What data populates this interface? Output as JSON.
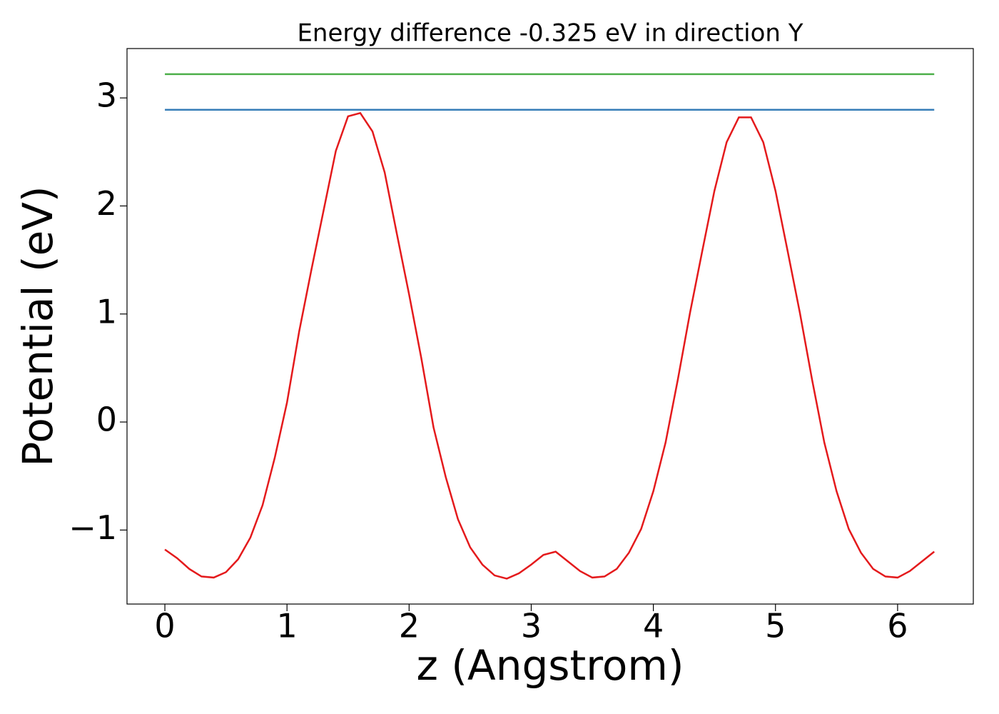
{
  "chart_data": {
    "type": "line",
    "title": "Energy difference -0.325 eV in direction Y",
    "x_label": "z (Angstrom)",
    "y_label": "Potential (eV)",
    "xlim": [
      -0.31,
      6.62
    ],
    "ylim": [
      -1.685,
      3.457
    ],
    "xticks": [
      0,
      1,
      2,
      3,
      4,
      5,
      6
    ],
    "yticks": [
      {
        "value": -1,
        "label": "−1"
      },
      0,
      1,
      2,
      3
    ],
    "grid": false,
    "series": [
      {
        "color": "#e41a1c",
        "x": [
          0,
          0.1,
          0.2,
          0.3,
          0.4,
          0.5,
          0.6,
          0.7,
          0.8,
          0.9,
          1.0,
          1.1,
          1.2,
          1.3,
          1.4,
          1.5,
          1.6,
          1.7,
          1.8,
          1.9,
          2.0,
          2.1,
          2.2,
          2.3,
          2.4,
          2.5,
          2.6,
          2.7,
          2.8,
          2.9,
          3.0,
          3.1,
          3.2,
          3.3,
          3.4,
          3.5,
          3.6,
          3.7,
          3.8,
          3.9,
          4.0,
          4.1,
          4.2,
          4.3,
          4.4,
          4.5,
          4.6,
          4.7,
          4.8,
          4.9,
          5.0,
          5.1,
          5.2,
          5.3,
          5.4,
          5.5,
          5.6,
          5.7,
          5.8,
          5.9,
          6.0,
          6.1,
          6.2,
          6.3
        ],
        "values": [
          -1.18,
          -1.26,
          -1.36,
          -1.43,
          -1.44,
          -1.39,
          -1.27,
          -1.07,
          -0.77,
          -0.33,
          0.18,
          0.84,
          1.41,
          1.96,
          2.51,
          2.83,
          2.86,
          2.69,
          2.31,
          1.74,
          1.18,
          0.59,
          -0.05,
          -0.51,
          -0.9,
          -1.16,
          -1.32,
          -1.42,
          -1.45,
          -1.4,
          -1.32,
          -1.23,
          -1.2,
          -1.29,
          -1.38,
          -1.44,
          -1.43,
          -1.36,
          -1.21,
          -0.99,
          -0.64,
          -0.19,
          0.39,
          1.01,
          1.58,
          2.14,
          2.59,
          2.82,
          2.82,
          2.59,
          2.14,
          1.58,
          1.01,
          0.39,
          -0.19,
          -0.64,
          -0.99,
          -1.21,
          -1.36,
          -1.43,
          -1.44,
          -1.38,
          -1.29,
          -1.2
        ]
      },
      {
        "color": "#377eb8",
        "x": [
          0,
          6.3
        ],
        "values": [
          2.89,
          2.89
        ]
      },
      {
        "color": "#4daf4a",
        "x": [
          0,
          6.3
        ],
        "values": [
          3.22,
          3.22
        ]
      }
    ]
  }
}
